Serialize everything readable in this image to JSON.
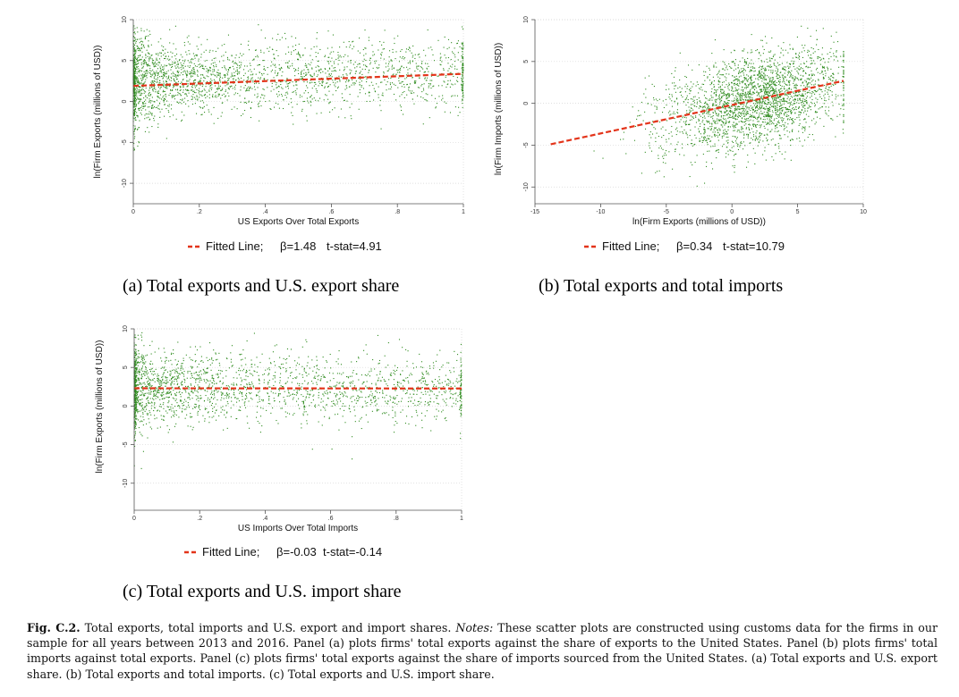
{
  "colors": {
    "point": "#2e8b1e",
    "fit": "#e3341a",
    "axis": "#555555",
    "grid": "#d6d6d6"
  },
  "chart_data": [
    {
      "id": "a",
      "type": "scatter",
      "xlabel": "US Exports Over Total Exports",
      "ylabel": "ln(Firm Exports (millions of USD))",
      "xlim": [
        0,
        1
      ],
      "ylim": [
        -12.5,
        10
      ],
      "x_ticks": [
        0,
        0.2,
        0.4,
        0.6,
        0.8,
        1
      ],
      "x_tick_labels": [
        "0",
        ".2",
        ".4",
        ".6",
        ".8",
        "1"
      ],
      "y_ticks": [
        -10,
        -5,
        0,
        5,
        10
      ],
      "y_tick_labels": [
        "-10",
        "-5",
        "0",
        "5",
        "10"
      ],
      "fit": {
        "intercept": 1.9,
        "slope": 1.48,
        "x_range": [
          0,
          1
        ]
      },
      "legend": {
        "prefix": "Fitted Line;",
        "beta": "β=1.48",
        "tstat": "t-stat=4.91"
      },
      "points": {
        "n": 2600,
        "x_dist": "concentrated near 0, spike at 0 and at 1",
        "y_mean": 2.5,
        "y_sd": 2.2
      },
      "caption": "(a) Total exports and U.S. export share"
    },
    {
      "id": "b",
      "type": "scatter",
      "xlabel": "ln(Firm Exports (millions of USD))",
      "ylabel": "ln(Firm Imports (millions of USD))",
      "xlim": [
        -15,
        10
      ],
      "ylim": [
        -12,
        10
      ],
      "x_ticks": [
        -15,
        -10,
        -5,
        0,
        5,
        10
      ],
      "x_tick_labels": [
        "-15",
        "-10",
        "-5",
        "0",
        "5",
        "10"
      ],
      "y_ticks": [
        -10,
        -5,
        0,
        5,
        10
      ],
      "y_tick_labels": [
        "-10",
        "-5",
        "0",
        "5",
        "10"
      ],
      "fit": {
        "intercept": -0.2,
        "slope": 0.34,
        "x_range": [
          -13.8,
          8.5
        ]
      },
      "legend": {
        "prefix": "Fitted Line;",
        "beta": "β=0.34",
        "tstat": "t-stat=10.79"
      },
      "points": {
        "n": 2600,
        "x_mean": 2.5,
        "x_sd": 3.0,
        "y_mean": 0.6,
        "y_sd": 2.8
      },
      "caption": "(b) Total exports and total imports"
    },
    {
      "id": "c",
      "type": "scatter",
      "xlabel": "US Imports Over Total Imports",
      "ylabel": "ln(Firm Exports (millions of USD))",
      "xlim": [
        0,
        1
      ],
      "ylim": [
        -13.5,
        10
      ],
      "x_ticks": [
        0,
        0.2,
        0.4,
        0.6,
        0.8,
        1
      ],
      "x_tick_labels": [
        "0",
        ".2",
        ".4",
        ".6",
        ".8",
        "1"
      ],
      "y_ticks": [
        -10,
        -5,
        0,
        5,
        10
      ],
      "y_tick_labels": [
        "-10",
        "-5",
        "0",
        "5",
        "10"
      ],
      "fit": {
        "intercept": 2.3,
        "slope": -0.03,
        "x_range": [
          0,
          1
        ]
      },
      "legend": {
        "prefix": "Fitted Line;",
        "beta": "β=-0.03",
        "tstat": "t-stat=-0.14"
      },
      "points": {
        "n": 2300,
        "x_dist": "concentrated near 0, spike at 0 and at 1",
        "y_mean": 2.3,
        "y_sd": 2.3
      },
      "caption": "(c) Total exports and U.S. import share"
    }
  ],
  "figure_caption": {
    "label": "Fig. C.2.",
    "text1": " Total exports, total imports and U.S. export and import shares. ",
    "notes_label": "Notes:",
    "text2": " These scatter plots are constructed using customs data for the firms in our sample for all years between 2013 and 2016. Panel (a) plots firms' total exports against the share of exports to the United States. Panel (b) plots firms' total imports against total exports. Panel (c) plots firms' total exports against the share of imports sourced from the United States. (a) Total exports and U.S. export share. (b) Total exports and total imports. (c) Total exports and U.S. import share."
  }
}
